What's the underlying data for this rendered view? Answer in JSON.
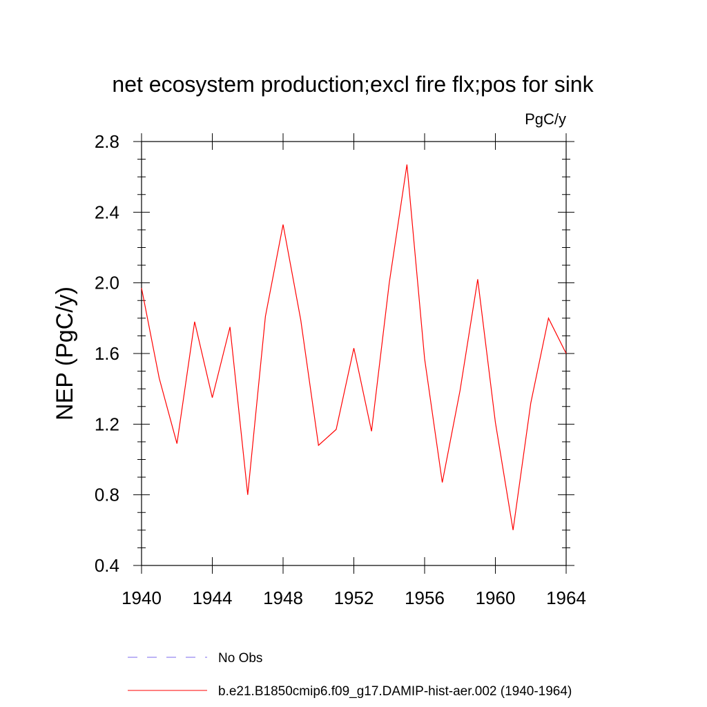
{
  "chart_data": {
    "type": "line",
    "title": "net ecosystem production;excl fire flx;pos for sink",
    "units_label": "PgC/y",
    "ylabel": "NEP  (PgC/y)",
    "xlabel": "",
    "xlim": [
      1940,
      1964
    ],
    "ylim": [
      0.4,
      2.8
    ],
    "x_ticks": [
      1940,
      1944,
      1948,
      1952,
      1956,
      1960,
      1964
    ],
    "y_ticks": [
      0.4,
      0.8,
      1.2,
      1.6,
      2.0,
      2.4,
      2.8
    ],
    "x_tick_labels": [
      "1940",
      "1944",
      "1948",
      "1952",
      "1956",
      "1960",
      "1964"
    ],
    "y_tick_labels": [
      "0.4",
      "0.8",
      "1.2",
      "1.6",
      "2.0",
      "2.4",
      "2.8"
    ],
    "grid": false,
    "legend_position": "bottom",
    "series": [
      {
        "name": "b.e21.B1850cmip6.f09_g17.DAMIP-hist-aer.002 (1940-1964)",
        "color": "#ff0000",
        "style": "solid",
        "x": [
          1940,
          1941,
          1942,
          1943,
          1944,
          1945,
          1946,
          1947,
          1948,
          1949,
          1950,
          1951,
          1952,
          1953,
          1954,
          1955,
          1956,
          1957,
          1958,
          1959,
          1960,
          1961,
          1962,
          1963,
          1964
        ],
        "values": [
          1.97,
          1.46,
          1.09,
          1.78,
          1.35,
          1.75,
          0.8,
          1.81,
          2.33,
          1.79,
          1.08,
          1.17,
          1.63,
          1.16,
          2.0,
          2.67,
          1.57,
          0.87,
          1.39,
          2.02,
          1.21,
          0.6,
          1.32,
          1.8,
          1.6
        ]
      }
    ],
    "legend": [
      {
        "label": "No Obs",
        "color": "#7b68ee",
        "style": "dashed"
      },
      {
        "label": "b.e21.B1850cmip6.f09_g17.DAMIP-hist-aer.002 (1940-1964)",
        "color": "#ff0000",
        "style": "solid"
      }
    ]
  }
}
